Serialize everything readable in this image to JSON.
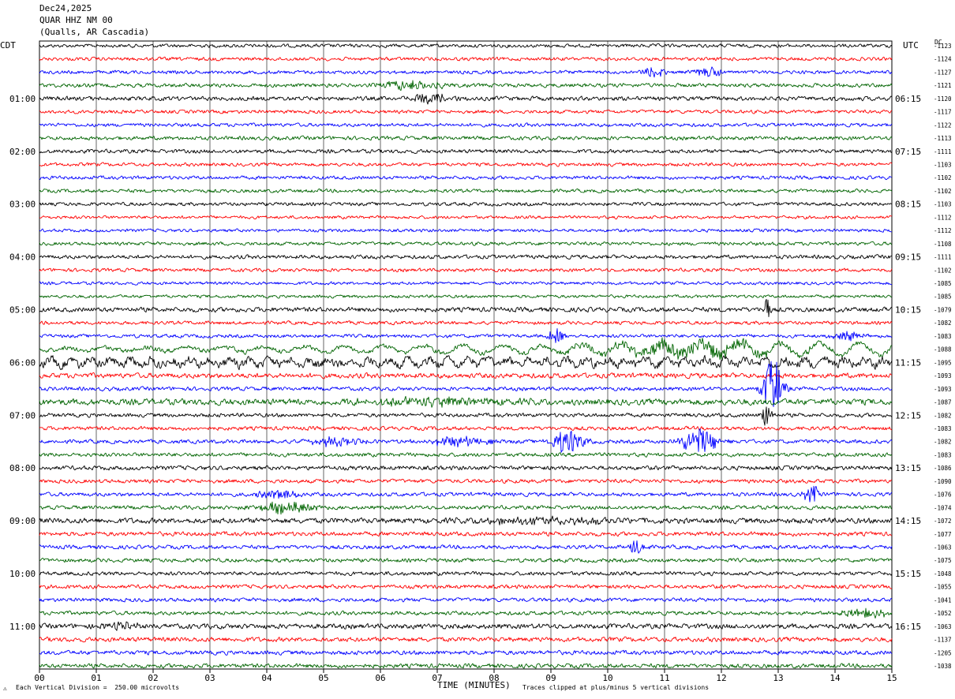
{
  "header": {
    "date": "Dec24,2025",
    "station": "QUAR HHZ NM 00",
    "location": "(Qualls, AR Cascadia)"
  },
  "left_tz": "CDT",
  "right_tz": "UTC",
  "dc_header": "DC",
  "footer": {
    "xlabel": "TIME (MINUTES)",
    "scale": "Each Vertical Division =  250.00 microvolts",
    "clip": "Traces clipped at plus/minus 5 vertical divisions",
    "logo_mark": "⚠"
  },
  "colors": {
    "trace_cycle": [
      "#000000",
      "#ff0000",
      "#0000ff",
      "#006400"
    ],
    "grid": "#000000",
    "background": "#ffffff"
  },
  "chart_data": {
    "type": "line",
    "x_ticks": [
      "00",
      "01",
      "02",
      "03",
      "04",
      "05",
      "06",
      "07",
      "08",
      "09",
      "10",
      "11",
      "12",
      "13",
      "14",
      "15"
    ],
    "xlim": [
      0,
      15
    ],
    "rows_per_hour": 4,
    "left_hour_labels": [
      "01:00",
      "02:00",
      "03:00",
      "04:00",
      "05:00",
      "06:00",
      "07:00",
      "08:00",
      "09:00",
      "10:00",
      "11:00"
    ],
    "right_hour_labels": [
      "06:15",
      "07:15",
      "08:15",
      "09:15",
      "10:15",
      "11:15",
      "12:15",
      "13:15",
      "14:15",
      "15:15",
      "16:15"
    ],
    "hour_label_start_row": 4,
    "dc_offsets": [
      "-1123",
      "-1124",
      "-1127",
      "-1121",
      "-1120",
      "-1117",
      "-1122",
      "-1113",
      "-1111",
      "-1103",
      "-1102",
      "-1102",
      "-1103",
      "-1112",
      "-1112",
      "-1108",
      "-1111",
      "-1102",
      "-1085",
      "-1085",
      "-1079",
      "-1082",
      "-1083",
      "-1088",
      "-1095",
      "-1093",
      "-1093",
      "-1087",
      "-1082",
      "-1083",
      "-1082",
      "-1083",
      "-1086",
      "-1090",
      "-1076",
      "-1074",
      "-1072",
      "-1077",
      "-1063",
      "-1075",
      "-1048",
      "-1055",
      "-1041",
      "-1052",
      "-1063",
      "-1137",
      "-1205",
      "-1038"
    ],
    "rows": [
      {
        "amp": 0.9,
        "events": []
      },
      {
        "amp": 0.9,
        "events": []
      },
      {
        "amp": 0.9,
        "events": [
          [
            10.8,
            0.5,
            2.0
          ],
          [
            11.8,
            0.5,
            2.0
          ]
        ]
      },
      {
        "amp": 1.0,
        "events": [
          [
            6.5,
            1.5,
            1.5
          ]
        ]
      },
      {
        "amp": 1.1,
        "events": [
          [
            6.9,
            0.8,
            2.0
          ]
        ]
      },
      {
        "amp": 0.9,
        "events": []
      },
      {
        "amp": 0.9,
        "events": []
      },
      {
        "amp": 1.0,
        "events": []
      },
      {
        "amp": 1.0,
        "events": []
      },
      {
        "amp": 0.9,
        "events": []
      },
      {
        "amp": 0.9,
        "events": []
      },
      {
        "amp": 0.9,
        "events": []
      },
      {
        "amp": 0.9,
        "events": []
      },
      {
        "amp": 0.8,
        "events": []
      },
      {
        "amp": 0.8,
        "events": []
      },
      {
        "amp": 0.9,
        "events": []
      },
      {
        "amp": 1.0,
        "events": []
      },
      {
        "amp": 0.9,
        "events": []
      },
      {
        "amp": 0.8,
        "events": []
      },
      {
        "amp": 0.8,
        "events": []
      },
      {
        "amp": 1.2,
        "events": [
          [
            12.8,
            0.1,
            8.0
          ]
        ]
      },
      {
        "amp": 0.9,
        "events": []
      },
      {
        "amp": 0.9,
        "events": [
          [
            9.1,
            0.3,
            3.0
          ],
          [
            14.2,
            0.6,
            1.8
          ]
        ]
      },
      {
        "amp": 1.2,
        "events": [
          [
            11.5,
            4.0,
            2.5
          ]
        ]
      },
      {
        "amp": 2.2,
        "events": []
      },
      {
        "amp": 1.3,
        "events": []
      },
      {
        "amp": 1.0,
        "events": [
          [
            12.9,
            0.4,
            12.0
          ]
        ]
      },
      {
        "amp": 1.6,
        "events": [
          [
            7.0,
            3.0,
            1.6
          ]
        ]
      },
      {
        "amp": 1.0,
        "events": [
          [
            12.8,
            0.2,
            5.0
          ]
        ]
      },
      {
        "amp": 1.0,
        "events": []
      },
      {
        "amp": 1.0,
        "events": [
          [
            9.3,
            0.6,
            5.0
          ],
          [
            11.6,
            0.8,
            5.0
          ],
          [
            5.2,
            1.0,
            1.8
          ],
          [
            7.3,
            1.3,
            1.8
          ]
        ]
      },
      {
        "amp": 1.0,
        "events": []
      },
      {
        "amp": 1.1,
        "events": []
      },
      {
        "amp": 1.0,
        "events": []
      },
      {
        "amp": 1.0,
        "events": [
          [
            13.6,
            0.3,
            3.5
          ],
          [
            4.2,
            0.8,
            1.8
          ]
        ]
      },
      {
        "amp": 1.0,
        "events": [
          [
            4.3,
            1.2,
            2.0
          ]
        ]
      },
      {
        "amp": 1.4,
        "events": [
          [
            9.0,
            3.0,
            1.3
          ]
        ]
      },
      {
        "amp": 1.1,
        "events": []
      },
      {
        "amp": 1.0,
        "events": [
          [
            10.5,
            0.3,
            3.0
          ]
        ]
      },
      {
        "amp": 1.0,
        "events": []
      },
      {
        "amp": 1.0,
        "events": []
      },
      {
        "amp": 1.0,
        "events": []
      },
      {
        "amp": 1.0,
        "events": []
      },
      {
        "amp": 1.0,
        "events": [
          [
            14.5,
            1.0,
            1.6
          ]
        ]
      },
      {
        "amp": 1.3,
        "events": [
          [
            1.5,
            0.8,
            1.5
          ]
        ]
      },
      {
        "amp": 1.2,
        "events": []
      },
      {
        "amp": 1.1,
        "events": []
      },
      {
        "amp": 1.1,
        "events": []
      }
    ]
  }
}
